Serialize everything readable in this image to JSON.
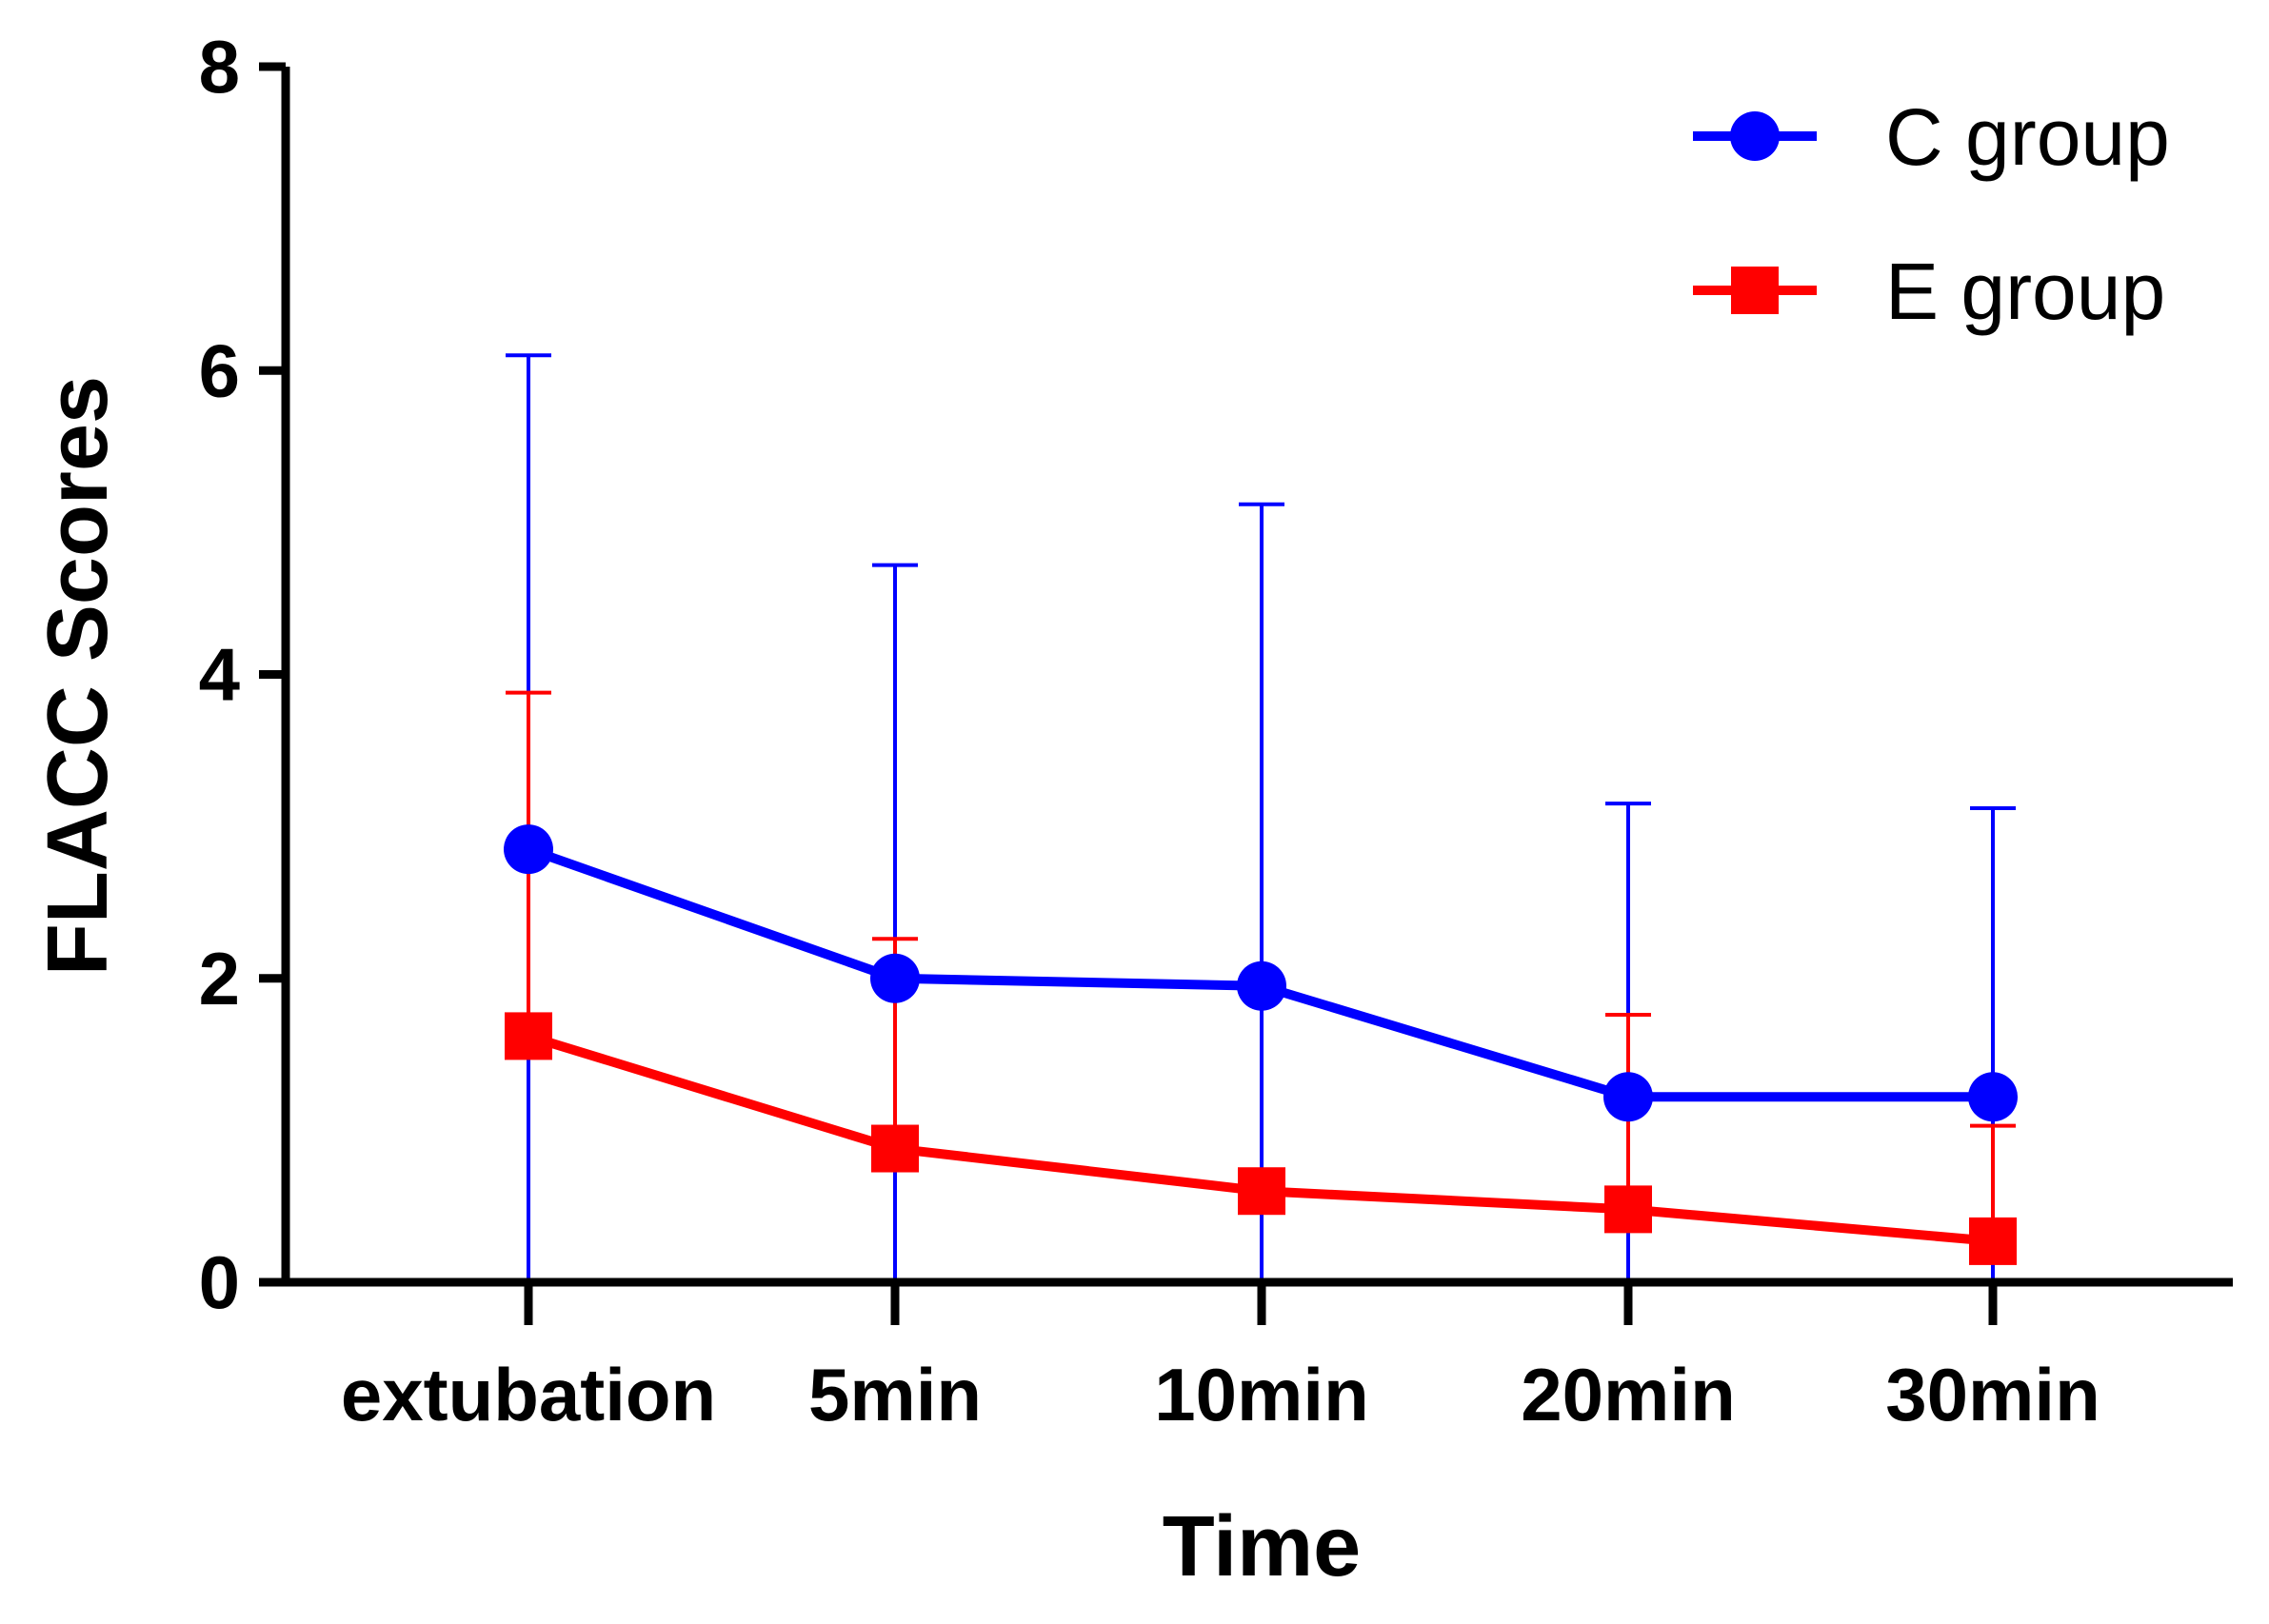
{
  "chart_data": {
    "type": "line",
    "title": "",
    "xlabel": "Time",
    "ylabel": "FLACC Scores",
    "categories": [
      "extubation",
      "5min",
      "10min",
      "20min",
      "30min"
    ],
    "ylim": [
      0,
      8
    ],
    "yticks": [
      "0",
      "2",
      "4",
      "6",
      "8"
    ],
    "legend_position": "top-right",
    "series": [
      {
        "name": "C group",
        "color": "#0000ff",
        "marker": "circle",
        "values": [
          2.85,
          2.0,
          1.95,
          1.22,
          1.22
        ],
        "error_upper": [
          6.1,
          4.72,
          5.12,
          3.15,
          3.12
        ],
        "error_lower": [
          0,
          0,
          0,
          0,
          0
        ]
      },
      {
        "name": "E group",
        "color": "#ff0000",
        "marker": "square",
        "values": [
          1.62,
          0.88,
          0.6,
          0.48,
          0.27
        ],
        "error_upper": [
          3.88,
          2.26,
          null,
          1.76,
          1.03
        ],
        "error_lower": [
          null,
          null,
          null,
          null,
          null
        ]
      }
    ]
  }
}
